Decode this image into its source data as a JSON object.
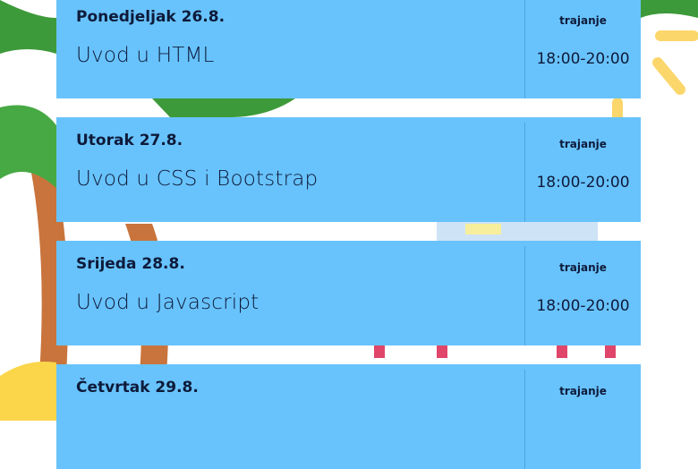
{
  "sessions": [
    {
      "day": "Ponedjeljak 26.8.",
      "topic": "Uvod u HTML",
      "duration_label": "trajanje",
      "time": "18:00-20:00"
    },
    {
      "day": "Utorak 27.8.",
      "topic": "Uvod u CSS i Bootstrap",
      "duration_label": "trajanje",
      "time": "18:00-20:00"
    },
    {
      "day": "Srijeda 28.8.",
      "topic": "Uvod u Javascript",
      "duration_label": "trajanje",
      "time": "18:00-20:00"
    },
    {
      "day": "Četvrtak 29.8.",
      "duration_label": "trajanje"
    }
  ]
}
